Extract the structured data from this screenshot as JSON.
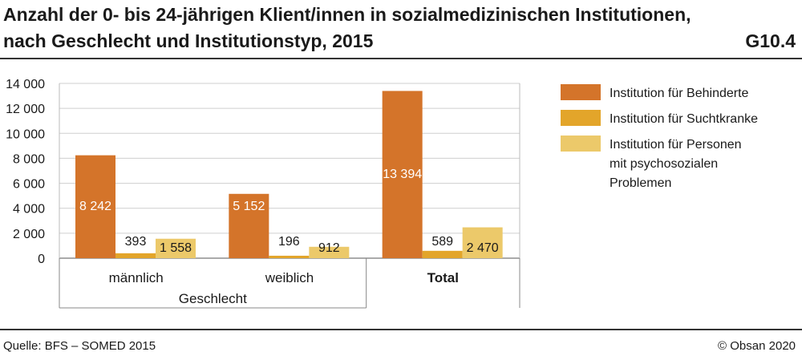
{
  "header": {
    "title_line1": "Anzahl der 0- bis 24-jährigen Klient/innen in sozialmedizinischen Institutionen,",
    "title_line2": "nach Geschlecht und Institutionstyp, 2015",
    "code": "G10.4"
  },
  "footer": {
    "source": "Quelle: BFS – SOMED 2015",
    "copyright": "© Obsan 2020"
  },
  "chart_data": {
    "type": "bar",
    "categories": [
      "männlich",
      "weiblich",
      "Total"
    ],
    "group_label": "Geschlecht",
    "ylim": [
      0,
      14000
    ],
    "y_ticks": [
      0,
      2000,
      4000,
      6000,
      8000,
      10000,
      12000,
      14000
    ],
    "y_tick_labels": [
      "0",
      "2 000",
      "4 000",
      "6 000",
      "8 000",
      "10 000",
      "12 000",
      "14 000"
    ],
    "grid": true,
    "legend_position": "right",
    "series": [
      {
        "name": "Institution für Behinderte",
        "color": "#d4742a",
        "values": [
          8242,
          5152,
          13394
        ],
        "labels": [
          "8 242",
          "5 152",
          "13 394"
        ]
      },
      {
        "name": "Institution für Suchtkranke",
        "color": "#e3a52a",
        "values": [
          393,
          196,
          589
        ],
        "labels": [
          "393",
          "196",
          "589"
        ]
      },
      {
        "name": "Institution für Personen mit psychosozialen Problemen",
        "name_lines": [
          "Institution für Personen",
          "mit psychosozialen",
          "Problemen"
        ],
        "color": "#ecc96a",
        "values": [
          1558,
          912,
          2470
        ],
        "labels": [
          "1 558",
          "912",
          "2 470"
        ]
      }
    ]
  }
}
